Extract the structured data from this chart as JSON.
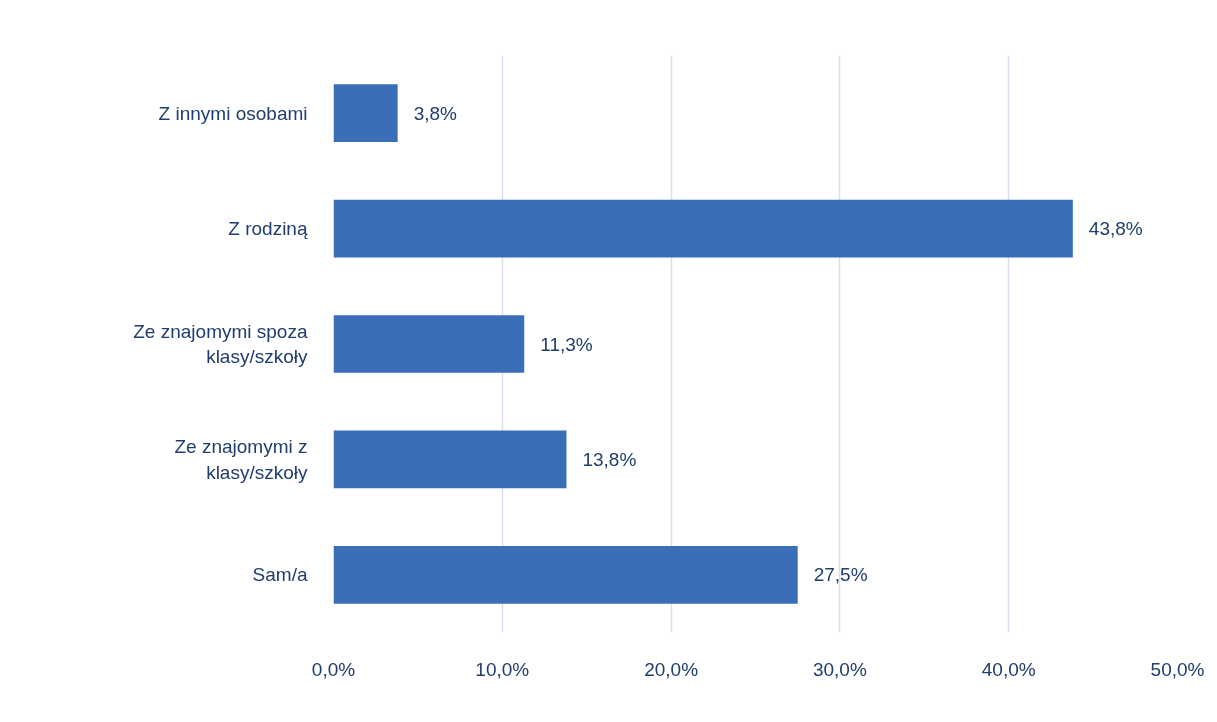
{
  "chart_data": {
    "type": "bar",
    "orientation": "horizontal",
    "categories": [
      "Z innymi osobami",
      "Z rodziną",
      "Ze znajomymi spoza klasy/szkoły",
      "Ze znajomymi z klasy/szkoły",
      "Sam/a"
    ],
    "values": [
      3.8,
      43.8,
      11.3,
      13.8,
      27.5
    ],
    "value_labels": [
      "3,8%",
      "43,8%",
      "11,3%",
      "13,8%",
      "27,5%"
    ],
    "color": "#3a6fb8",
    "xlim": [
      0,
      50
    ],
    "xticks": [
      {
        "value": 0,
        "label": "0,0%"
      },
      {
        "value": 10,
        "label": "10,0%"
      },
      {
        "value": 20,
        "label": "20,0%"
      },
      {
        "value": 30,
        "label": "30,0%"
      },
      {
        "value": 40,
        "label": "40,0%"
      },
      {
        "value": 50,
        "label": "50,0%"
      }
    ],
    "grid": "x"
  }
}
